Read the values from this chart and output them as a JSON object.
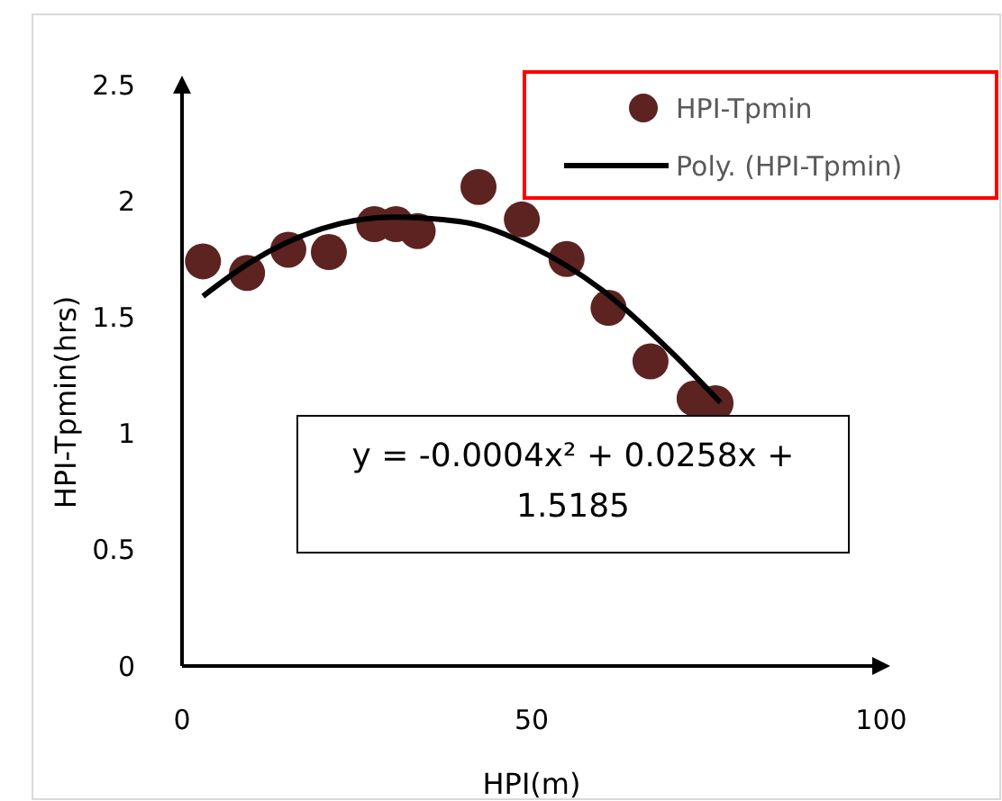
{
  "chart_data": {
    "type": "scatter",
    "xlabel": "HPI(m)",
    "ylabel": "HPI-Tpmin(hrs)",
    "xlim": [
      0,
      100
    ],
    "xticks": [
      0,
      50,
      100
    ],
    "ylim": [
      0,
      2.5
    ],
    "yticks": [
      0,
      0.5,
      1,
      1.5,
      2,
      2.5
    ],
    "grid": false,
    "legend": "top right",
    "marker": "circle",
    "series": [
      {
        "name": "HPI-Tpmin",
        "color": "#5c2321",
        "x": [
          3,
          9.3,
          15.2,
          21,
          27.5,
          30.6,
          33.7,
          42.4,
          48.6,
          55,
          61,
          67,
          73.3,
          76.3
        ],
        "values": [
          1.74,
          1.69,
          1.79,
          1.78,
          1.9,
          1.9,
          1.87,
          2.06,
          1.92,
          1.75,
          1.54,
          1.31,
          1.15,
          1.13
        ]
      },
      {
        "name": "Poly. (HPI-Tpmin)",
        "type": "line",
        "color": "#000000",
        "line_style": "solid",
        "marker": "none",
        "x": [
          3,
          10,
          20,
          30,
          40,
          50,
          60,
          70,
          77
        ],
        "values": [
          1.59,
          1.74,
          1.88,
          1.93,
          1.91,
          1.804,
          1.618,
          1.349,
          1.133
        ]
      }
    ],
    "annotations": [
      {
        "text": "y = -0.0004x² + 0.0258x + 1.5185"
      }
    ]
  }
}
